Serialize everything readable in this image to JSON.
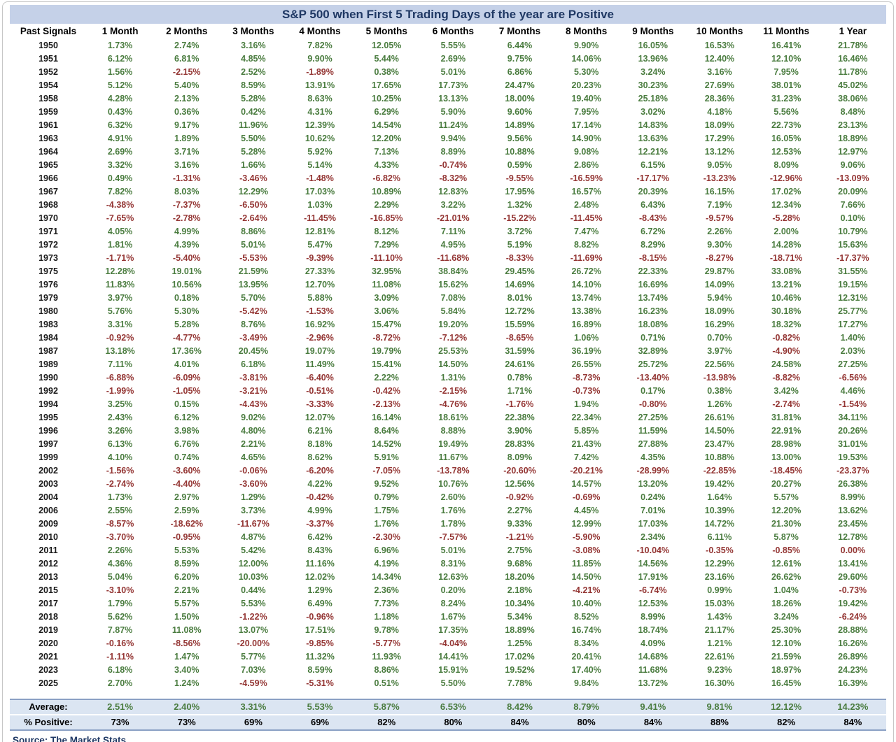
{
  "chart_data": {
    "type": "table",
    "title": "S&P 500 when First 5 Trading Days of the year are Positive",
    "columns": [
      "Past Signals",
      "1 Month",
      "2 Months",
      "3 Months",
      "4 Months",
      "5 Months",
      "6 Months",
      "7 Months",
      "8 Months",
      "9 Months",
      "10 Months",
      "11 Months",
      "1 Year"
    ],
    "rows": [
      {
        "year": "1950",
        "values": [
          "1.73%",
          "2.74%",
          "3.16%",
          "7.82%",
          "12.05%",
          "5.55%",
          "6.44%",
          "9.90%",
          "16.05%",
          "16.53%",
          "16.41%",
          "21.78%"
        ]
      },
      {
        "year": "1951",
        "values": [
          "6.12%",
          "6.81%",
          "4.85%",
          "9.90%",
          "5.44%",
          "2.69%",
          "9.75%",
          "14.06%",
          "13.96%",
          "12.40%",
          "12.10%",
          "16.46%"
        ]
      },
      {
        "year": "1952",
        "values": [
          "1.56%",
          "-2.15%",
          "2.52%",
          "-1.89%",
          "0.38%",
          "5.01%",
          "6.86%",
          "5.30%",
          "3.24%",
          "3.16%",
          "7.95%",
          "11.78%"
        ]
      },
      {
        "year": "1954",
        "values": [
          "5.12%",
          "5.40%",
          "8.59%",
          "13.91%",
          "17.65%",
          "17.73%",
          "24.47%",
          "20.23%",
          "30.23%",
          "27.69%",
          "38.01%",
          "45.02%"
        ]
      },
      {
        "year": "1958",
        "values": [
          "4.28%",
          "2.13%",
          "5.28%",
          "8.63%",
          "10.25%",
          "13.13%",
          "18.00%",
          "19.40%",
          "25.18%",
          "28.36%",
          "31.23%",
          "38.06%"
        ]
      },
      {
        "year": "1959",
        "values": [
          "0.43%",
          "0.36%",
          "0.42%",
          "4.31%",
          "6.29%",
          "5.90%",
          "9.60%",
          "7.95%",
          "3.02%",
          "4.18%",
          "5.56%",
          "8.48%"
        ]
      },
      {
        "year": "1961",
        "values": [
          "6.32%",
          "9.17%",
          "11.96%",
          "12.39%",
          "14.54%",
          "11.24%",
          "14.89%",
          "17.14%",
          "14.83%",
          "18.09%",
          "22.73%",
          "23.13%"
        ]
      },
      {
        "year": "1963",
        "values": [
          "4.91%",
          "1.89%",
          "5.50%",
          "10.62%",
          "12.20%",
          "9.94%",
          "9.56%",
          "14.90%",
          "13.63%",
          "17.29%",
          "16.05%",
          "18.89%"
        ]
      },
      {
        "year": "1964",
        "values": [
          "2.69%",
          "3.71%",
          "5.28%",
          "5.92%",
          "7.13%",
          "8.89%",
          "10.88%",
          "9.08%",
          "12.21%",
          "13.12%",
          "12.53%",
          "12.97%"
        ]
      },
      {
        "year": "1965",
        "values": [
          "3.32%",
          "3.16%",
          "1.66%",
          "5.14%",
          "4.33%",
          "-0.74%",
          "0.59%",
          "2.86%",
          "6.15%",
          "9.05%",
          "8.09%",
          "9.06%"
        ]
      },
      {
        "year": "1966",
        "values": [
          "0.49%",
          "-1.31%",
          "-3.46%",
          "-1.48%",
          "-6.82%",
          "-8.32%",
          "-9.55%",
          "-16.59%",
          "-17.17%",
          "-13.23%",
          "-12.96%",
          "-13.09%"
        ]
      },
      {
        "year": "1967",
        "values": [
          "7.82%",
          "8.03%",
          "12.29%",
          "17.03%",
          "10.89%",
          "12.83%",
          "17.95%",
          "16.57%",
          "20.39%",
          "16.15%",
          "17.02%",
          "20.09%"
        ]
      },
      {
        "year": "1968",
        "values": [
          "-4.38%",
          "-7.37%",
          "-6.50%",
          "1.03%",
          "2.29%",
          "3.22%",
          "1.32%",
          "2.48%",
          "6.43%",
          "7.19%",
          "12.34%",
          "7.66%"
        ]
      },
      {
        "year": "1970",
        "values": [
          "-7.65%",
          "-2.78%",
          "-2.64%",
          "-11.45%",
          "-16.85%",
          "-21.01%",
          "-15.22%",
          "-11.45%",
          "-8.43%",
          "-9.57%",
          "-5.28%",
          "0.10%"
        ]
      },
      {
        "year": "1971",
        "values": [
          "4.05%",
          "4.99%",
          "8.86%",
          "12.81%",
          "8.12%",
          "7.11%",
          "3.72%",
          "7.47%",
          "6.72%",
          "2.26%",
          "2.00%",
          "10.79%"
        ]
      },
      {
        "year": "1972",
        "values": [
          "1.81%",
          "4.39%",
          "5.01%",
          "5.47%",
          "7.29%",
          "4.95%",
          "5.19%",
          "8.82%",
          "8.29%",
          "9.30%",
          "14.28%",
          "15.63%"
        ]
      },
      {
        "year": "1973",
        "values": [
          "-1.71%",
          "-5.40%",
          "-5.53%",
          "-9.39%",
          "-11.10%",
          "-11.68%",
          "-8.33%",
          "-11.69%",
          "-8.15%",
          "-8.27%",
          "-18.71%",
          "-17.37%"
        ]
      },
      {
        "year": "1975",
        "values": [
          "12.28%",
          "19.01%",
          "21.59%",
          "27.33%",
          "32.95%",
          "38.84%",
          "29.45%",
          "26.72%",
          "22.33%",
          "29.87%",
          "33.08%",
          "31.55%"
        ]
      },
      {
        "year": "1976",
        "values": [
          "11.83%",
          "10.56%",
          "13.95%",
          "12.70%",
          "11.08%",
          "15.62%",
          "14.69%",
          "14.10%",
          "16.69%",
          "14.09%",
          "13.21%",
          "19.15%"
        ]
      },
      {
        "year": "1979",
        "values": [
          "3.97%",
          "0.18%",
          "5.70%",
          "5.88%",
          "3.09%",
          "7.08%",
          "8.01%",
          "13.74%",
          "13.74%",
          "5.94%",
          "10.46%",
          "12.31%"
        ]
      },
      {
        "year": "1980",
        "values": [
          "5.76%",
          "5.30%",
          "-5.42%",
          "-1.53%",
          "3.06%",
          "5.84%",
          "12.72%",
          "13.38%",
          "16.23%",
          "18.09%",
          "30.18%",
          "25.77%"
        ]
      },
      {
        "year": "1983",
        "values": [
          "3.31%",
          "5.28%",
          "8.76%",
          "16.92%",
          "15.47%",
          "19.20%",
          "15.59%",
          "16.89%",
          "18.08%",
          "16.29%",
          "18.32%",
          "17.27%"
        ]
      },
      {
        "year": "1984",
        "values": [
          "-0.92%",
          "-4.77%",
          "-3.49%",
          "-2.96%",
          "-8.72%",
          "-7.12%",
          "-8.65%",
          "1.06%",
          "0.71%",
          "0.70%",
          "-0.82%",
          "1.40%"
        ]
      },
      {
        "year": "1987",
        "values": [
          "13.18%",
          "17.36%",
          "20.45%",
          "19.07%",
          "19.79%",
          "25.53%",
          "31.59%",
          "36.19%",
          "32.89%",
          "3.97%",
          "-4.90%",
          "2.03%"
        ]
      },
      {
        "year": "1989",
        "values": [
          "7.11%",
          "4.01%",
          "6.18%",
          "11.49%",
          "15.41%",
          "14.50%",
          "24.61%",
          "26.55%",
          "25.72%",
          "22.56%",
          "24.58%",
          "27.25%"
        ]
      },
      {
        "year": "1990",
        "values": [
          "-6.88%",
          "-6.09%",
          "-3.81%",
          "-6.40%",
          "2.22%",
          "1.31%",
          "0.78%",
          "-8.73%",
          "-13.40%",
          "-13.98%",
          "-8.82%",
          "-6.56%"
        ]
      },
      {
        "year": "1992",
        "values": [
          "-1.99%",
          "-1.05%",
          "-3.21%",
          "-0.51%",
          "-0.42%",
          "-2.15%",
          "1.71%",
          "-0.73%",
          "0.17%",
          "0.38%",
          "3.42%",
          "4.46%"
        ]
      },
      {
        "year": "1994",
        "values": [
          "3.25%",
          "0.15%",
          "-4.43%",
          "-3.33%",
          "-2.13%",
          "-4.76%",
          "-1.76%",
          "1.94%",
          "-0.80%",
          "1.26%",
          "-2.74%",
          "-1.54%"
        ]
      },
      {
        "year": "1995",
        "values": [
          "2.43%",
          "6.12%",
          "9.02%",
          "12.07%",
          "16.14%",
          "18.61%",
          "22.38%",
          "22.34%",
          "27.25%",
          "26.61%",
          "31.81%",
          "34.11%"
        ]
      },
      {
        "year": "1996",
        "values": [
          "3.26%",
          "3.98%",
          "4.80%",
          "6.21%",
          "8.64%",
          "8.88%",
          "3.90%",
          "5.85%",
          "11.59%",
          "14.50%",
          "22.91%",
          "20.26%"
        ]
      },
      {
        "year": "1997",
        "values": [
          "6.13%",
          "6.76%",
          "2.21%",
          "8.18%",
          "14.52%",
          "19.49%",
          "28.83%",
          "21.43%",
          "27.88%",
          "23.47%",
          "28.98%",
          "31.01%"
        ]
      },
      {
        "year": "1999",
        "values": [
          "4.10%",
          "0.74%",
          "4.65%",
          "8.62%",
          "5.91%",
          "11.67%",
          "8.09%",
          "7.42%",
          "4.35%",
          "10.88%",
          "13.00%",
          "19.53%"
        ]
      },
      {
        "year": "2002",
        "values": [
          "-1.56%",
          "-3.60%",
          "-0.06%",
          "-6.20%",
          "-7.05%",
          "-13.78%",
          "-20.60%",
          "-20.21%",
          "-28.99%",
          "-22.85%",
          "-18.45%",
          "-23.37%"
        ]
      },
      {
        "year": "2003",
        "values": [
          "-2.74%",
          "-4.40%",
          "-3.60%",
          "4.22%",
          "9.52%",
          "10.76%",
          "12.56%",
          "14.57%",
          "13.20%",
          "19.42%",
          "20.27%",
          "26.38%"
        ]
      },
      {
        "year": "2004",
        "values": [
          "1.73%",
          "2.97%",
          "1.29%",
          "-0.42%",
          "0.79%",
          "2.60%",
          "-0.92%",
          "-0.69%",
          "0.24%",
          "1.64%",
          "5.57%",
          "8.99%"
        ]
      },
      {
        "year": "2006",
        "values": [
          "2.55%",
          "2.59%",
          "3.73%",
          "4.99%",
          "1.75%",
          "1.76%",
          "2.27%",
          "4.45%",
          "7.01%",
          "10.39%",
          "12.20%",
          "13.62%"
        ]
      },
      {
        "year": "2009",
        "values": [
          "-8.57%",
          "-18.62%",
          "-11.67%",
          "-3.37%",
          "1.76%",
          "1.78%",
          "9.33%",
          "12.99%",
          "17.03%",
          "14.72%",
          "21.30%",
          "23.45%"
        ]
      },
      {
        "year": "2010",
        "values": [
          "-3.70%",
          "-0.95%",
          "4.87%",
          "6.42%",
          "-2.30%",
          "-7.57%",
          "-1.21%",
          "-5.90%",
          "2.34%",
          "6.11%",
          "5.87%",
          "12.78%"
        ]
      },
      {
        "year": "2011",
        "values": [
          "2.26%",
          "5.53%",
          "5.42%",
          "8.43%",
          "6.96%",
          "5.01%",
          "2.75%",
          "-3.08%",
          "-10.04%",
          "-0.35%",
          "-0.85%",
          "0.00%"
        ]
      },
      {
        "year": "2012",
        "values": [
          "4.36%",
          "8.59%",
          "12.00%",
          "11.16%",
          "4.19%",
          "8.31%",
          "9.68%",
          "11.85%",
          "14.56%",
          "12.29%",
          "12.61%",
          "13.41%"
        ]
      },
      {
        "year": "2013",
        "values": [
          "5.04%",
          "6.20%",
          "10.03%",
          "12.02%",
          "14.34%",
          "12.63%",
          "18.20%",
          "14.50%",
          "17.91%",
          "23.16%",
          "26.62%",
          "29.60%"
        ]
      },
      {
        "year": "2015",
        "values": [
          "-3.10%",
          "2.21%",
          "0.44%",
          "1.29%",
          "2.36%",
          "0.20%",
          "2.18%",
          "-4.21%",
          "-6.74%",
          "0.99%",
          "1.04%",
          "-0.73%"
        ]
      },
      {
        "year": "2017",
        "values": [
          "1.79%",
          "5.57%",
          "5.53%",
          "6.49%",
          "7.73%",
          "8.24%",
          "10.34%",
          "10.40%",
          "12.53%",
          "15.03%",
          "18.26%",
          "19.42%"
        ]
      },
      {
        "year": "2018",
        "values": [
          "5.62%",
          "1.50%",
          "-1.22%",
          "-0.96%",
          "1.18%",
          "1.67%",
          "5.34%",
          "8.52%",
          "8.99%",
          "1.43%",
          "3.24%",
          "-6.24%"
        ]
      },
      {
        "year": "2019",
        "values": [
          "7.87%",
          "11.08%",
          "13.07%",
          "17.51%",
          "9.78%",
          "17.35%",
          "18.89%",
          "16.74%",
          "18.74%",
          "21.17%",
          "25.30%",
          "28.88%"
        ]
      },
      {
        "year": "2020",
        "values": [
          "-0.16%",
          "-8.56%",
          "-20.00%",
          "-9.85%",
          "-5.77%",
          "-4.04%",
          "1.25%",
          "8.34%",
          "4.09%",
          "1.21%",
          "12.10%",
          "16.26%"
        ]
      },
      {
        "year": "2021",
        "values": [
          "-1.11%",
          "1.47%",
          "5.77%",
          "11.32%",
          "11.93%",
          "14.41%",
          "17.02%",
          "20.41%",
          "14.68%",
          "22.61%",
          "21.59%",
          "26.89%"
        ]
      },
      {
        "year": "2023",
        "values": [
          "6.18%",
          "3.40%",
          "7.03%",
          "8.59%",
          "8.86%",
          "15.91%",
          "19.52%",
          "17.40%",
          "11.68%",
          "9.23%",
          "18.97%",
          "24.23%"
        ]
      },
      {
        "year": "2025",
        "values": [
          "2.70%",
          "1.24%",
          "-4.59%",
          "-5.31%",
          "0.51%",
          "5.50%",
          "7.78%",
          "9.84%",
          "13.72%",
          "16.30%",
          "16.45%",
          "16.39%"
        ]
      }
    ],
    "summary": {
      "average": {
        "label": "Average:",
        "values": [
          "2.51%",
          "2.40%",
          "3.31%",
          "5.53%",
          "5.87%",
          "6.53%",
          "8.42%",
          "8.79%",
          "9.41%",
          "9.81%",
          "12.12%",
          "14.23%"
        ]
      },
      "percent_positive": {
        "label": "% Positive:",
        "values": [
          "73%",
          "73%",
          "69%",
          "69%",
          "82%",
          "80%",
          "84%",
          "80%",
          "84%",
          "88%",
          "82%",
          "84%"
        ]
      }
    },
    "source": "Source: The Market Stats"
  },
  "colors": {
    "positive": "#4a7c3f",
    "negative": "#943634",
    "title_text": "#1f3864",
    "title_bg": "#c5d1e8",
    "summary_bg": "#dbe5f2",
    "source_text": "#1f3864"
  }
}
